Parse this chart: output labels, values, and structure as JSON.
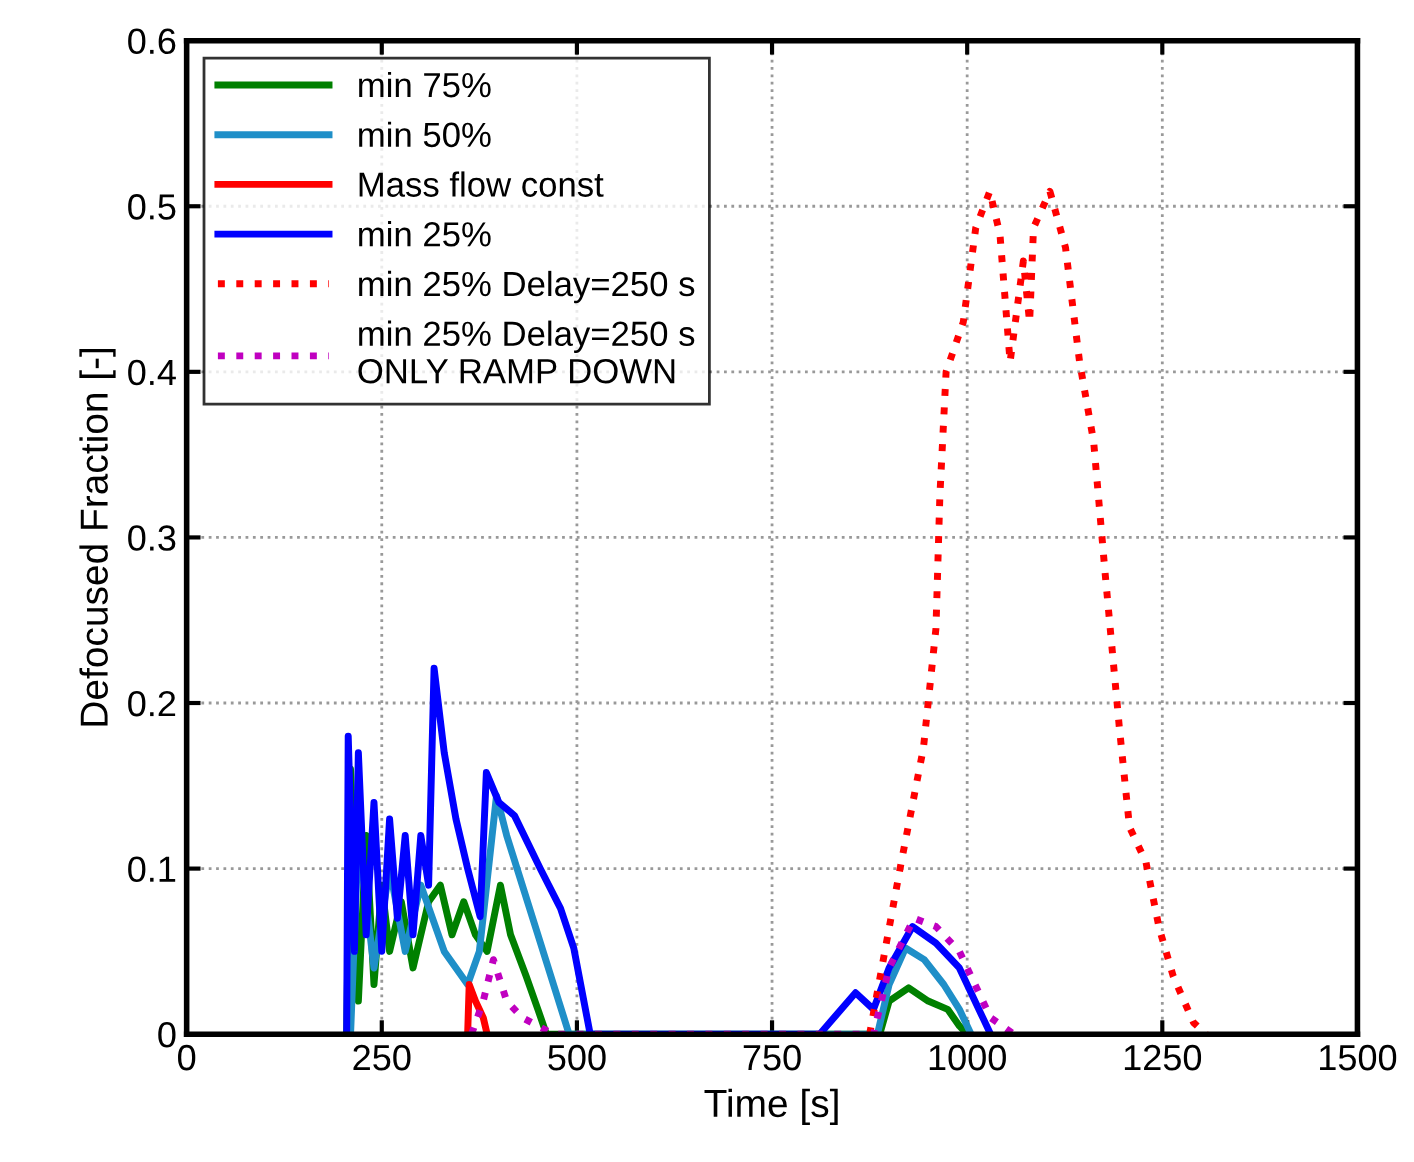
{
  "chart_data": {
    "type": "line",
    "xlabel": "Time [s]",
    "ylabel": "Defocused Fraction [-]",
    "xlim": [
      0,
      1500
    ],
    "ylim": [
      0,
      0.6
    ],
    "xticks": [
      0,
      250,
      500,
      750,
      1000,
      1250,
      1500
    ],
    "yticks": [
      0,
      0.1,
      0.2,
      0.3,
      0.4,
      0.5,
      0.6
    ],
    "grid": true,
    "legend": "top left",
    "series": [
      {
        "name": "min 75%",
        "color": "#008000",
        "line_style": "solid",
        "x": [
          205,
          210,
          220,
          230,
          240,
          250,
          260,
          275,
          290,
          310,
          325,
          340,
          355,
          370,
          385,
          402,
          415,
          435,
          450,
          461,
          888,
          900,
          925,
          950,
          975,
          990,
          1000
        ],
        "values": [
          0,
          0.16,
          0.02,
          0.12,
          0.03,
          0.09,
          0.05,
          0.08,
          0.04,
          0.08,
          0.09,
          0.06,
          0.08,
          0.06,
          0.05,
          0.09,
          0.06,
          0.035,
          0.015,
          0,
          0,
          0.02,
          0.028,
          0.02,
          0.015,
          0.005,
          0
        ]
      },
      {
        "name": "min 50%",
        "color": "#1f8fc8",
        "line_style": "solid",
        "x": [
          210,
          220,
          240,
          260,
          280,
          300,
          330,
          360,
          375,
          397,
          410,
          430,
          450,
          470,
          490,
          885,
          900,
          921,
          945,
          970,
          990,
          1005
        ],
        "values": [
          0,
          0.12,
          0.04,
          0.1,
          0.05,
          0.09,
          0.05,
          0.03,
          0.05,
          0.144,
          0.12,
          0.09,
          0.06,
          0.03,
          0,
          0,
          0.03,
          0.052,
          0.045,
          0.03,
          0.015,
          0
        ]
      },
      {
        "name": "Mass flow const",
        "color": "#ff0000",
        "line_style": "solid",
        "x": [
          360,
          362,
          370,
          380,
          385
        ],
        "values": [
          0,
          0.03,
          0.02,
          0.01,
          0
        ]
      },
      {
        "name": "min 25%",
        "color": "#0000ff",
        "line_style": "solid",
        "x": [
          205,
          207,
          215,
          220,
          230,
          240,
          250,
          260,
          270,
          280,
          290,
          300,
          310,
          317,
          330,
          345,
          360,
          376,
          384,
          400,
          420,
          453,
          479,
          496,
          517,
          811,
          857,
          880,
          900,
          930,
          960,
          990,
          1020,
          1030
        ],
        "values": [
          0,
          0.18,
          0.05,
          0.17,
          0.06,
          0.14,
          0.05,
          0.13,
          0.07,
          0.12,
          0.06,
          0.12,
          0.09,
          0.221,
          0.17,
          0.13,
          0.1,
          0.071,
          0.158,
          0.14,
          0.132,
          0.1,
          0.076,
          0.052,
          0,
          0,
          0.025,
          0.015,
          0.04,
          0.065,
          0.055,
          0.04,
          0.01,
          0
        ]
      },
      {
        "name": "min 25% Delay=250 s",
        "color": "#ff0000",
        "line_style": "dotted",
        "x": [
          875,
          914,
          944,
          960,
          965,
          973,
          995,
          1011,
          1029,
          1042,
          1055,
          1072,
          1080,
          1085,
          1106,
          1126,
          1144,
          1162,
          1177,
          1195,
          1208,
          1229,
          1246,
          1264,
          1290,
          1306
        ],
        "values": [
          0,
          0.1,
          0.173,
          0.245,
          0.325,
          0.4,
          0.43,
          0.487,
          0.509,
          0.483,
          0.406,
          0.467,
          0.43,
          0.487,
          0.509,
          0.475,
          0.406,
          0.358,
          0.277,
          0.185,
          0.125,
          0.104,
          0.064,
          0.035,
          0.007,
          0
        ]
      },
      {
        "name": "min 25% Delay=250 s\nONLY RAMP DOWN",
        "color": "#c000c0",
        "line_style": "dotted",
        "x": [
          365,
          380,
          393,
          410,
          430,
          450,
          470,
          880,
          900,
          932,
          960,
          990,
          1010,
          1030,
          1060
        ],
        "values": [
          0,
          0.02,
          0.045,
          0.02,
          0.01,
          0.005,
          0,
          0,
          0.04,
          0.07,
          0.065,
          0.05,
          0.03,
          0.01,
          0
        ]
      }
    ]
  }
}
